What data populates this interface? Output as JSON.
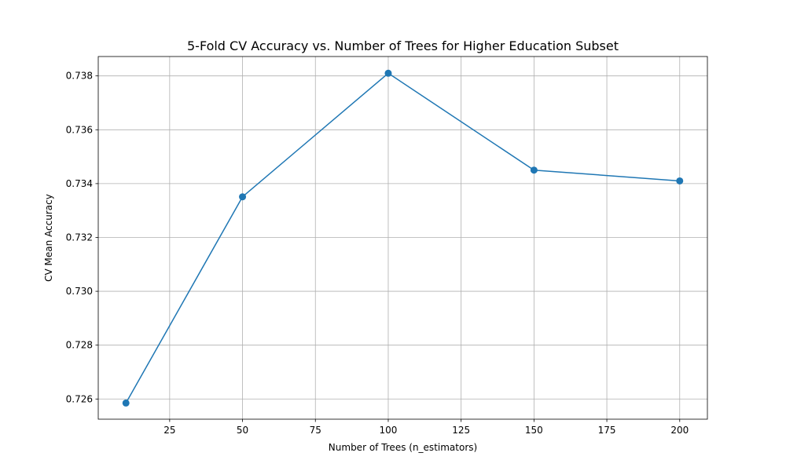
{
  "chart_data": {
    "type": "line",
    "title": "5-Fold CV Accuracy vs. Number of Trees for Higher Education Subset",
    "xlabel": "Number of Trees (n_estimators)",
    "ylabel": "CV Mean Accuracy",
    "x": [
      10,
      50,
      100,
      150,
      200
    ],
    "series": [
      {
        "values": [
          0.72585,
          0.73351,
          0.7381,
          0.7345,
          0.7341
        ]
      }
    ],
    "xlim": [
      0.5,
      209.5
    ],
    "ylim": [
      0.72525,
      0.73872
    ],
    "xticks": [
      25,
      50,
      75,
      100,
      125,
      150,
      175,
      200
    ],
    "xtick_labels": [
      "25",
      "50",
      "75",
      "100",
      "125",
      "150",
      "175",
      "200"
    ],
    "yticks": [
      0.726,
      0.728,
      0.73,
      0.732,
      0.734,
      0.736,
      0.738
    ],
    "ytick_labels": [
      "0.726",
      "0.728",
      "0.730",
      "0.732",
      "0.734",
      "0.736",
      "0.738"
    ],
    "grid": true,
    "line_color": "#1f77b4",
    "marker": "circle"
  }
}
